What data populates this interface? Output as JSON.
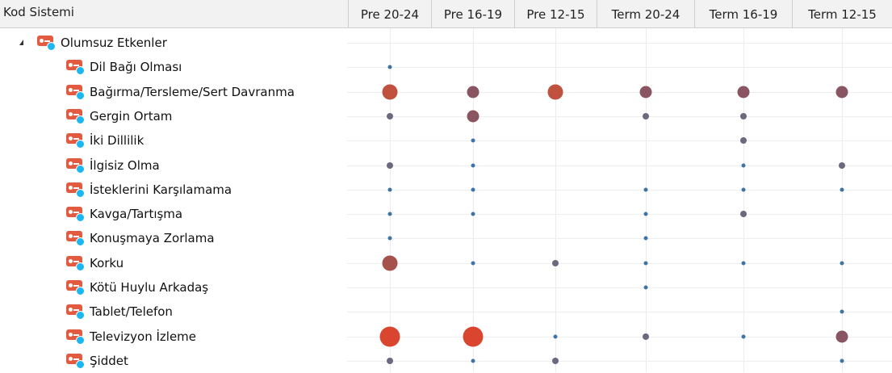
{
  "header": {
    "code_system_label": "Kod Sistemi",
    "columns": [
      "Pre 20-24",
      "Pre 16-19",
      "Pre 12-15",
      "Term 20-24",
      "Term 16-19",
      "Term 12-15"
    ]
  },
  "tree": {
    "parent": {
      "label": "Olumsuz Etkenler",
      "expanded": true,
      "icon": "code-tag-icon"
    },
    "rows": [
      {
        "label": "Dil Bağı Olması",
        "cells": [
          "tiny",
          null,
          null,
          null,
          null,
          null
        ]
      },
      {
        "label": "Bağırma/Tersleme/Sert Davranma",
        "cells": [
          "large-red",
          "medium-dark",
          "large-red",
          "medium-dark",
          "medium-dark",
          "medium-dark"
        ]
      },
      {
        "label": "Gergin Ortam",
        "cells": [
          "small",
          "medium-dark",
          null,
          "small",
          "small",
          null
        ]
      },
      {
        "label": "İki Dillilik",
        "cells": [
          null,
          "tiny",
          null,
          null,
          "small",
          null
        ]
      },
      {
        "label": "İlgisiz Olma",
        "cells": [
          "small",
          "tiny",
          null,
          null,
          "tiny",
          "small"
        ]
      },
      {
        "label": "İsteklerini Karşılamama",
        "cells": [
          "tiny",
          "tiny",
          null,
          "tiny",
          "tiny",
          "tiny"
        ]
      },
      {
        "label": "Kavga/Tartışma",
        "cells": [
          "tiny",
          "tiny",
          null,
          "tiny",
          "small",
          null
        ]
      },
      {
        "label": "Konuşmaya Zorlama",
        "cells": [
          "tiny",
          null,
          null,
          "tiny",
          null,
          null
        ]
      },
      {
        "label": "Korku",
        "cells": [
          "large-dark",
          "tiny",
          "small",
          "tiny",
          "tiny",
          "tiny"
        ]
      },
      {
        "label": "Kötü Huylu Arkadaş",
        "cells": [
          null,
          null,
          null,
          "tiny",
          null,
          null
        ]
      },
      {
        "label": "Tablet/Telefon",
        "cells": [
          null,
          null,
          null,
          null,
          null,
          "tiny"
        ]
      },
      {
        "label": "Televizyon İzleme",
        "cells": [
          "xlarge-red",
          "xlarge-red",
          "tiny",
          "small",
          "tiny",
          "medium-dark"
        ]
      },
      {
        "label": "Şiddet",
        "cells": [
          "small",
          "tiny",
          "small",
          null,
          null,
          "tiny"
        ]
      }
    ]
  },
  "bubble_styles": {
    "tiny": {
      "size": 5,
      "color": "#3d74a8"
    },
    "small": {
      "size": 8,
      "color": "#6b6880"
    },
    "medium-dark": {
      "size": 15,
      "color": "#8a5562"
    },
    "large-dark": {
      "size": 19,
      "color": "#a5524d"
    },
    "large-red": {
      "size": 19,
      "color": "#c0513f"
    },
    "xlarge-red": {
      "size": 25,
      "color": "#d9452f"
    }
  }
}
